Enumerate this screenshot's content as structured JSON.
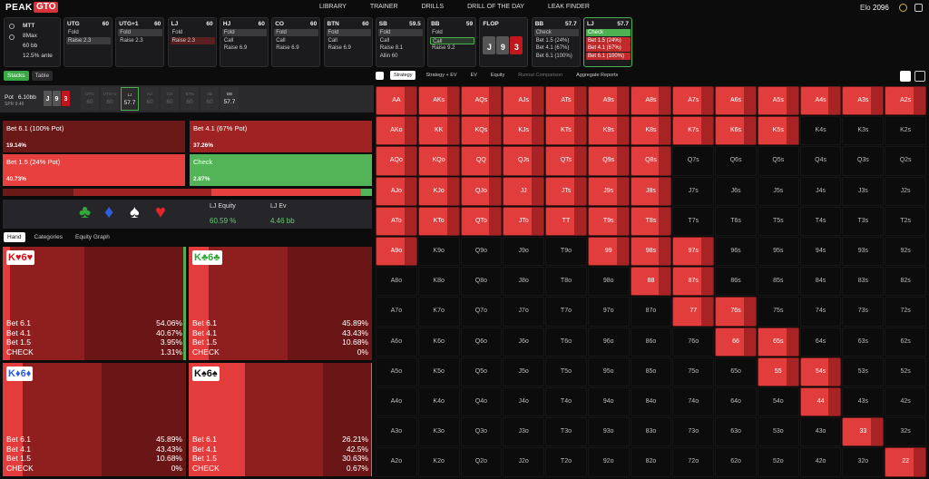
{
  "nav": {
    "logo_a": "PEAK",
    "logo_b": "GTO",
    "links": [
      "LIBRARY",
      "TRAINER",
      "DRILLS",
      "DRILL OF THE DAY",
      "LEAK FINDER"
    ],
    "elo_label": "Elo",
    "elo": "2096"
  },
  "game": {
    "lines": [
      "MTT",
      "8Max",
      "60 bb",
      "12.5% ante"
    ]
  },
  "positions": [
    {
      "name": "UTG",
      "stack": "60",
      "actions": [
        "Fold",
        "Raise 2.3"
      ],
      "selected": 1
    },
    {
      "name": "UTG+1",
      "stack": "60",
      "actions": [
        "Fold",
        "Raise 2.3"
      ],
      "selected": 0
    },
    {
      "name": "LJ",
      "stack": "60",
      "actions": [
        "Fold",
        "Raise 2.3"
      ],
      "selected": 1
    },
    {
      "name": "HJ",
      "stack": "60",
      "actions": [
        "Fold",
        "Call",
        "Raise 6.9"
      ],
      "selected": 0
    },
    {
      "name": "CO",
      "stack": "60",
      "actions": [
        "Fold",
        "Call",
        "Raise 6.9"
      ],
      "selected": 0
    },
    {
      "name": "BTN",
      "stack": "60",
      "actions": [
        "Fold",
        "Call",
        "Raise 6.9"
      ],
      "selected": 0
    },
    {
      "name": "SB",
      "stack": "59.5",
      "actions": [
        "Fold",
        "Call",
        "Raise 8.1",
        "Allin 60"
      ],
      "selected": 0
    },
    {
      "name": "BB",
      "stack": "59",
      "actions": [
        "Fold",
        "Call",
        "Raise 9.2"
      ],
      "selected": 1
    },
    {
      "name": "BB",
      "stack": "57.7",
      "actions": [
        "Check",
        "Bet 1.5 (24%)",
        "Bet 4.1 (67%)",
        "Bet 6.1 (100%)"
      ],
      "selected": 0
    },
    {
      "name": "LJ",
      "stack": "57.7",
      "actions": [
        "Check",
        "Bet 1.5 (24%)",
        "Bet 4.1 (67%)",
        "Bet 6.1 (100%)"
      ],
      "selected": 0,
      "active": true
    }
  ],
  "flop": {
    "name": "FLOP",
    "cards": [
      {
        "rank": "J",
        "color": "#555555"
      },
      {
        "rank": "9",
        "color": "#555555"
      },
      {
        "rank": "3",
        "color": "#c0161c"
      }
    ]
  },
  "left_tabs": [
    "Stacks",
    "Table"
  ],
  "pot": {
    "label": "Pot",
    "value": "6.10bb",
    "spr": "SPR 9.46",
    "seats": [
      {
        "name": "UTG",
        "stack": "60"
      },
      {
        "name": "UTG+1",
        "stack": "60"
      },
      {
        "name": "LJ",
        "stack": "57.7",
        "active": true
      },
      {
        "name": "HJ",
        "stack": "60"
      },
      {
        "name": "CO",
        "stack": "60"
      },
      {
        "name": "BTN",
        "stack": "60"
      },
      {
        "name": "SB",
        "stack": "60"
      },
      {
        "name": "BB",
        "stack": "57.7",
        "active": true
      }
    ]
  },
  "actions": [
    {
      "label": "Bet 6.1 (100% Pot)",
      "freq": "19.14%",
      "color": "#6b1818"
    },
    {
      "label": "Bet 4.1 (67% Pot)",
      "freq": "37.26%",
      "color": "#9f2323"
    },
    {
      "label": "Bet 1.5 (24% Pot)",
      "freq": "40.73%",
      "color": "#e8403f"
    },
    {
      "label": "Check",
      "freq": "2.87%",
      "color": "#53b457"
    }
  ],
  "equity": {
    "suits": [
      {
        "symbol": "♣",
        "color": "#2fa83a"
      },
      {
        "symbol": "♦",
        "color": "#2f5fe0"
      },
      {
        "symbol": "♠",
        "color": "#ffffff"
      },
      {
        "symbol": "♥",
        "color": "#e0262b"
      }
    ],
    "equity_label": "LJ Equity",
    "equity_value": "60.59 %",
    "ev_label": "LJ Ev",
    "ev_value": "4.46 bb"
  },
  "hand_tabs": [
    "Hand",
    "Categories",
    "Equity Graph"
  ],
  "hands": [
    {
      "cards": [
        {
          "rank": "K",
          "suit": "♥"
        },
        {
          "rank": "6",
          "suit": "♥"
        }
      ],
      "suit_color": "#d0161c",
      "labels": [
        "Bet 6.1",
        "Bet 4.1",
        "Bet 1.5",
        "CHECK"
      ],
      "freqs": [
        "54.06%",
        "40.67%",
        "3.95%",
        "1.31%"
      ]
    },
    {
      "cards": [
        {
          "rank": "K",
          "suit": "♣"
        },
        {
          "rank": "6",
          "suit": "♣"
        }
      ],
      "suit_color": "#2fa83a",
      "labels": [
        "Bet 6.1",
        "Bet 4.1",
        "Bet 1.5",
        "CHECK"
      ],
      "freqs": [
        "45.89%",
        "43.43%",
        "10.68%",
        "0%"
      ]
    },
    {
      "cards": [
        {
          "rank": "K",
          "suit": "♦"
        },
        {
          "rank": "6",
          "suit": "♦"
        }
      ],
      "suit_color": "#2f5fe0",
      "labels": [
        "Bet 6.1",
        "Bet 4.1",
        "Bet 1.5",
        "CHECK"
      ],
      "freqs": [
        "45.89%",
        "43.43%",
        "10.68%",
        "0%"
      ]
    },
    {
      "cards": [
        {
          "rank": "K",
          "suit": "♠"
        },
        {
          "rank": "6",
          "suit": "♠"
        }
      ],
      "suit_color": "#111111",
      "labels": [
        "Bet 6.1",
        "Bet 4.1",
        "Bet 1.5",
        "CHECK"
      ],
      "freqs": [
        "26.21%",
        "42.5%",
        "30.63%",
        "0.67%"
      ]
    }
  ],
  "right_tabs": [
    "Strategy",
    "Strategy + EV",
    "EV",
    "Equity",
    "Runout Comparison",
    "Aggregate Reports"
  ],
  "matrix": {
    "rows": [
      [
        "AA",
        "AKs",
        "AQs",
        "AJs",
        "ATs",
        "A9s",
        "A8s",
        "A7s",
        "A6s",
        "A5s",
        "A4s",
        "A3s",
        "A2s"
      ],
      [
        "AKo",
        "KK",
        "KQs",
        "KJs",
        "KTs",
        "K9s",
        "K8s",
        "K7s",
        "K6s",
        "K5s",
        "K4s",
        "K3s",
        "K2s"
      ],
      [
        "AQo",
        "KQo",
        "QQ",
        "QJs",
        "QTs",
        "Q9s",
        "Q8s",
        "Q7s",
        "Q6s",
        "Q5s",
        "Q4s",
        "Q3s",
        "Q2s"
      ],
      [
        "AJo",
        "KJo",
        "QJo",
        "JJ",
        "JTs",
        "J9s",
        "J8s",
        "J7s",
        "J6s",
        "J5s",
        "J4s",
        "J3s",
        "J2s"
      ],
      [
        "ATo",
        "KTo",
        "QTo",
        "JTo",
        "TT",
        "T9s",
        "T8s",
        "T7s",
        "T6s",
        "T5s",
        "T4s",
        "T3s",
        "T2s"
      ],
      [
        "A9o",
        "K9o",
        "Q9o",
        "J9o",
        "T9o",
        "99",
        "98s",
        "97s",
        "96s",
        "95s",
        "94s",
        "93s",
        "92s"
      ],
      [
        "A8o",
        "K8o",
        "Q8o",
        "J8o",
        "T8o",
        "98o",
        "88",
        "87s",
        "86s",
        "85s",
        "84s",
        "83s",
        "82s"
      ],
      [
        "A7o",
        "K7o",
        "Q7o",
        "J7o",
        "T7o",
        "97o",
        "87o",
        "77",
        "76s",
        "75s",
        "74s",
        "73s",
        "72s"
      ],
      [
        "A6o",
        "K6o",
        "Q6o",
        "J6o",
        "T6o",
        "96o",
        "86o",
        "76o",
        "66",
        "65s",
        "64s",
        "63s",
        "62s"
      ],
      [
        "A5o",
        "K5o",
        "Q5o",
        "J5o",
        "T5o",
        "95o",
        "85o",
        "75o",
        "65o",
        "55",
        "54s",
        "53s",
        "52s"
      ],
      [
        "A4o",
        "K4o",
        "Q4o",
        "J4o",
        "T4o",
        "94o",
        "84o",
        "74o",
        "64o",
        "54o",
        "44",
        "43s",
        "42s"
      ],
      [
        "A3o",
        "K3o",
        "Q3o",
        "J3o",
        "T3o",
        "93o",
        "83o",
        "73o",
        "63o",
        "53o",
        "43o",
        "33",
        "32s"
      ],
      [
        "A2o",
        "K2o",
        "Q2o",
        "J2o",
        "T2o",
        "92o",
        "82o",
        "72o",
        "62o",
        "52o",
        "42o",
        "32o",
        "22"
      ]
    ],
    "active": [
      "1111111111111",
      "1111111111000",
      "1111111000000",
      "1111111000000",
      "1111111000000",
      "1000011100000",
      "0000001100000",
      "0000000110000",
      "0000000011000",
      "0000000001100",
      "0000000000100",
      "0000000000010",
      "0000000000001"
    ]
  }
}
